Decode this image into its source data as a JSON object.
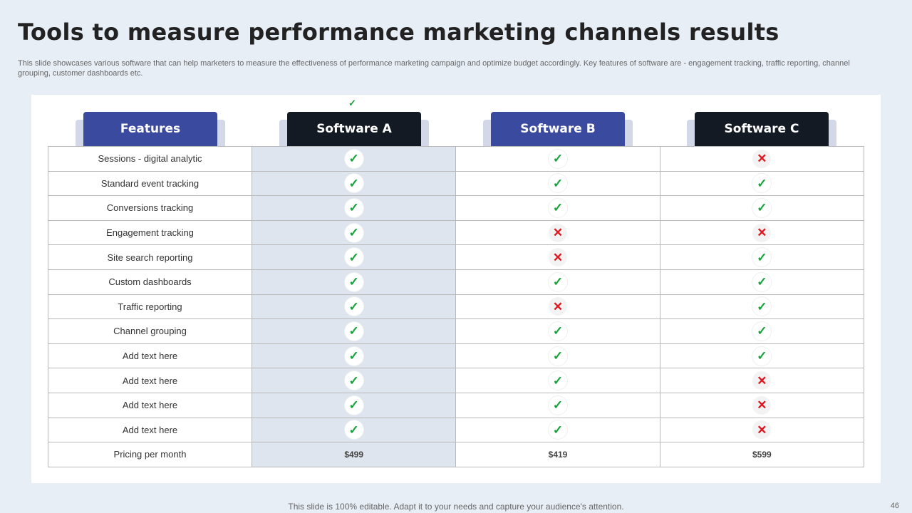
{
  "slide": {
    "title": "Tools to measure performance marketing channels results",
    "subtitle": "This slide showcases various software that can help marketers to measure the effectiveness of performance marketing campaign and optimize budget accordingly. Key features of software are - engagement tracking, traffic reporting, channel grouping, customer dashboards etc.",
    "footer": "This slide is 100% editable. Adapt it to your needs and capture your audience's attention.",
    "page_number": "46"
  },
  "icons": {
    "check": "✓",
    "cross": "✕"
  },
  "colors": {
    "check": "#16a33a",
    "cross": "#e0161e",
    "header_blue": "#3a4a9e",
    "header_dark": "#131a23",
    "highlight_column": "#dfe5ee"
  },
  "table": {
    "headers": [
      "Features",
      "Software A",
      "Software B",
      "Software C"
    ],
    "rows": [
      {
        "feature": "Sessions - digital analytic",
        "a": "check",
        "b": "check",
        "c": "cross"
      },
      {
        "feature": "Standard event tracking",
        "a": "check",
        "b": "check",
        "c": "check"
      },
      {
        "feature": "Conversions tracking",
        "a": "check",
        "b": "check",
        "c": "check"
      },
      {
        "feature": "Engagement tracking",
        "a": "check",
        "b": "cross",
        "c": "cross"
      },
      {
        "feature": "Site search reporting",
        "a": "check",
        "b": "cross",
        "c": "check"
      },
      {
        "feature": "Custom dashboards",
        "a": "check",
        "b": "check",
        "c": "check"
      },
      {
        "feature": "Traffic reporting",
        "a": "check",
        "b": "cross",
        "c": "check"
      },
      {
        "feature": "Channel grouping",
        "a": "check",
        "b": "check",
        "c": "check"
      },
      {
        "feature": "Add text here",
        "a": "check",
        "b": "check",
        "c": "check"
      },
      {
        "feature": "Add text here",
        "a": "check",
        "b": "check",
        "c": "cross"
      },
      {
        "feature": "Add text here",
        "a": "check",
        "b": "check",
        "c": "cross"
      },
      {
        "feature": "Add text here",
        "a": "check",
        "b": "check",
        "c": "cross"
      }
    ],
    "pricing": {
      "feature": "Pricing per month",
      "a": "$499",
      "b": "$419",
      "c": "$599"
    }
  }
}
